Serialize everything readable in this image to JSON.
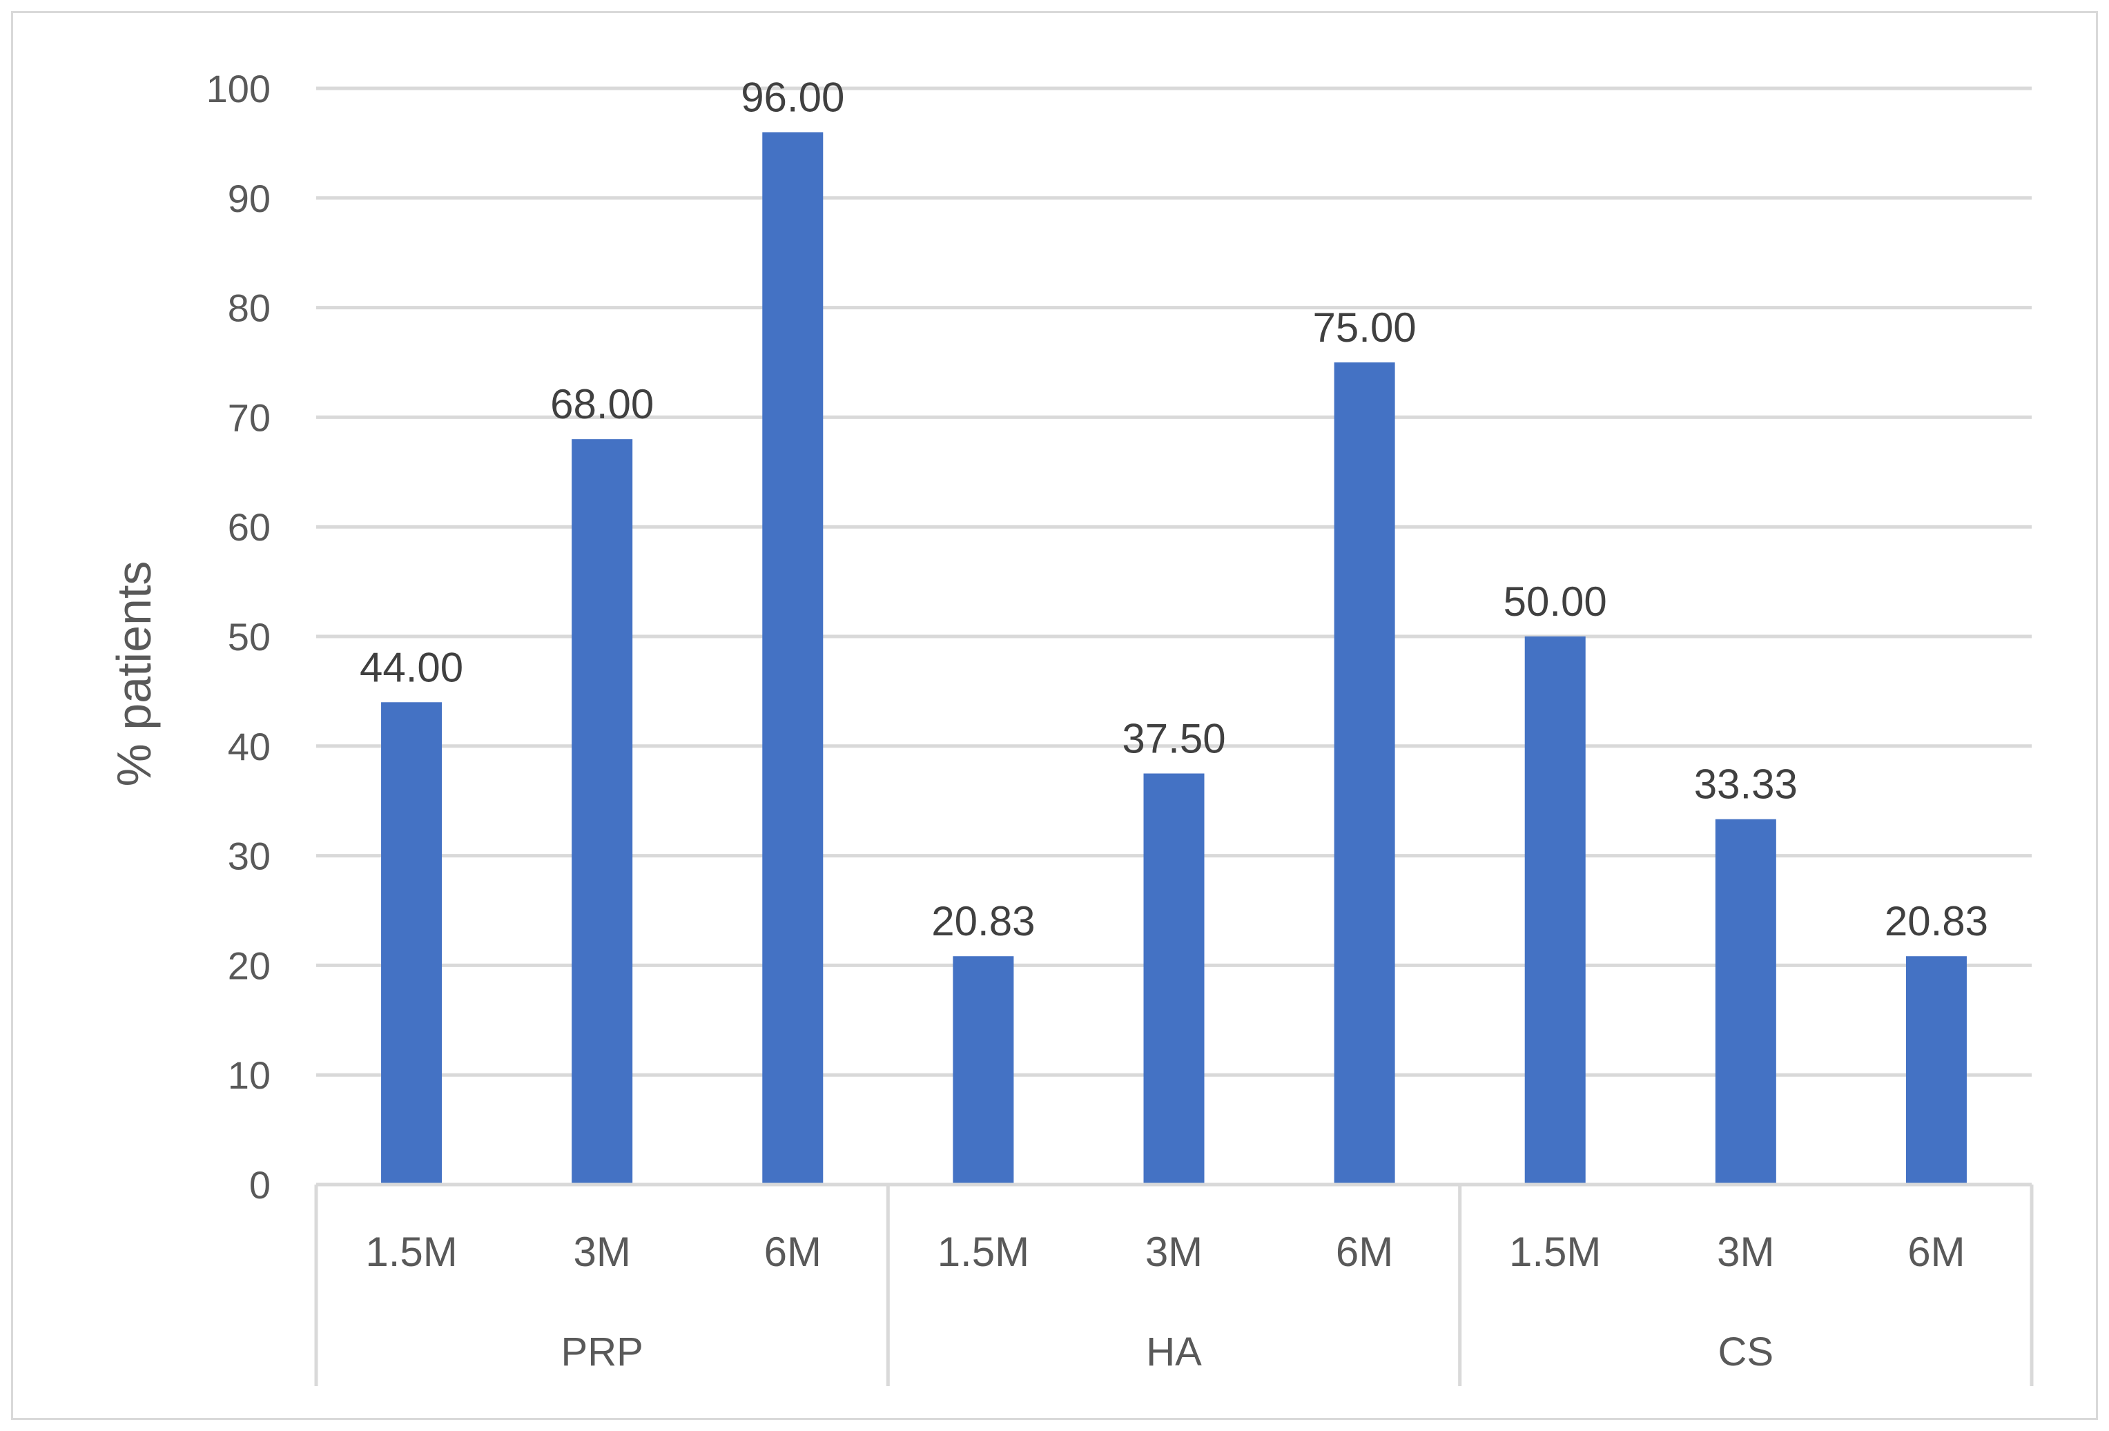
{
  "chart_data": {
    "type": "bar",
    "ylabel": "% patients",
    "xlabel": "",
    "ylim": [
      0,
      100
    ],
    "yticks": [
      0,
      10,
      20,
      30,
      40,
      50,
      60,
      70,
      80,
      90,
      100
    ],
    "grid": true,
    "legend": "none",
    "bar_color": "#4472C4",
    "groups": [
      {
        "label": "PRP",
        "categories": [
          "1.5M",
          "3M",
          "6M"
        ],
        "values": [
          44.0,
          68.0,
          96.0
        ],
        "data_labels": [
          "44.00",
          "68.00",
          "96.00"
        ]
      },
      {
        "label": "HA",
        "categories": [
          "1.5M",
          "3M",
          "6M"
        ],
        "values": [
          20.83,
          37.5,
          75.0
        ],
        "data_labels": [
          "20.83",
          "37.50",
          "75.00"
        ]
      },
      {
        "label": "CS",
        "categories": [
          "1.5M",
          "3M",
          "6M"
        ],
        "values": [
          50.0,
          33.33,
          20.83
        ],
        "data_labels": [
          "50.00",
          "33.33",
          "20.83"
        ]
      }
    ]
  }
}
